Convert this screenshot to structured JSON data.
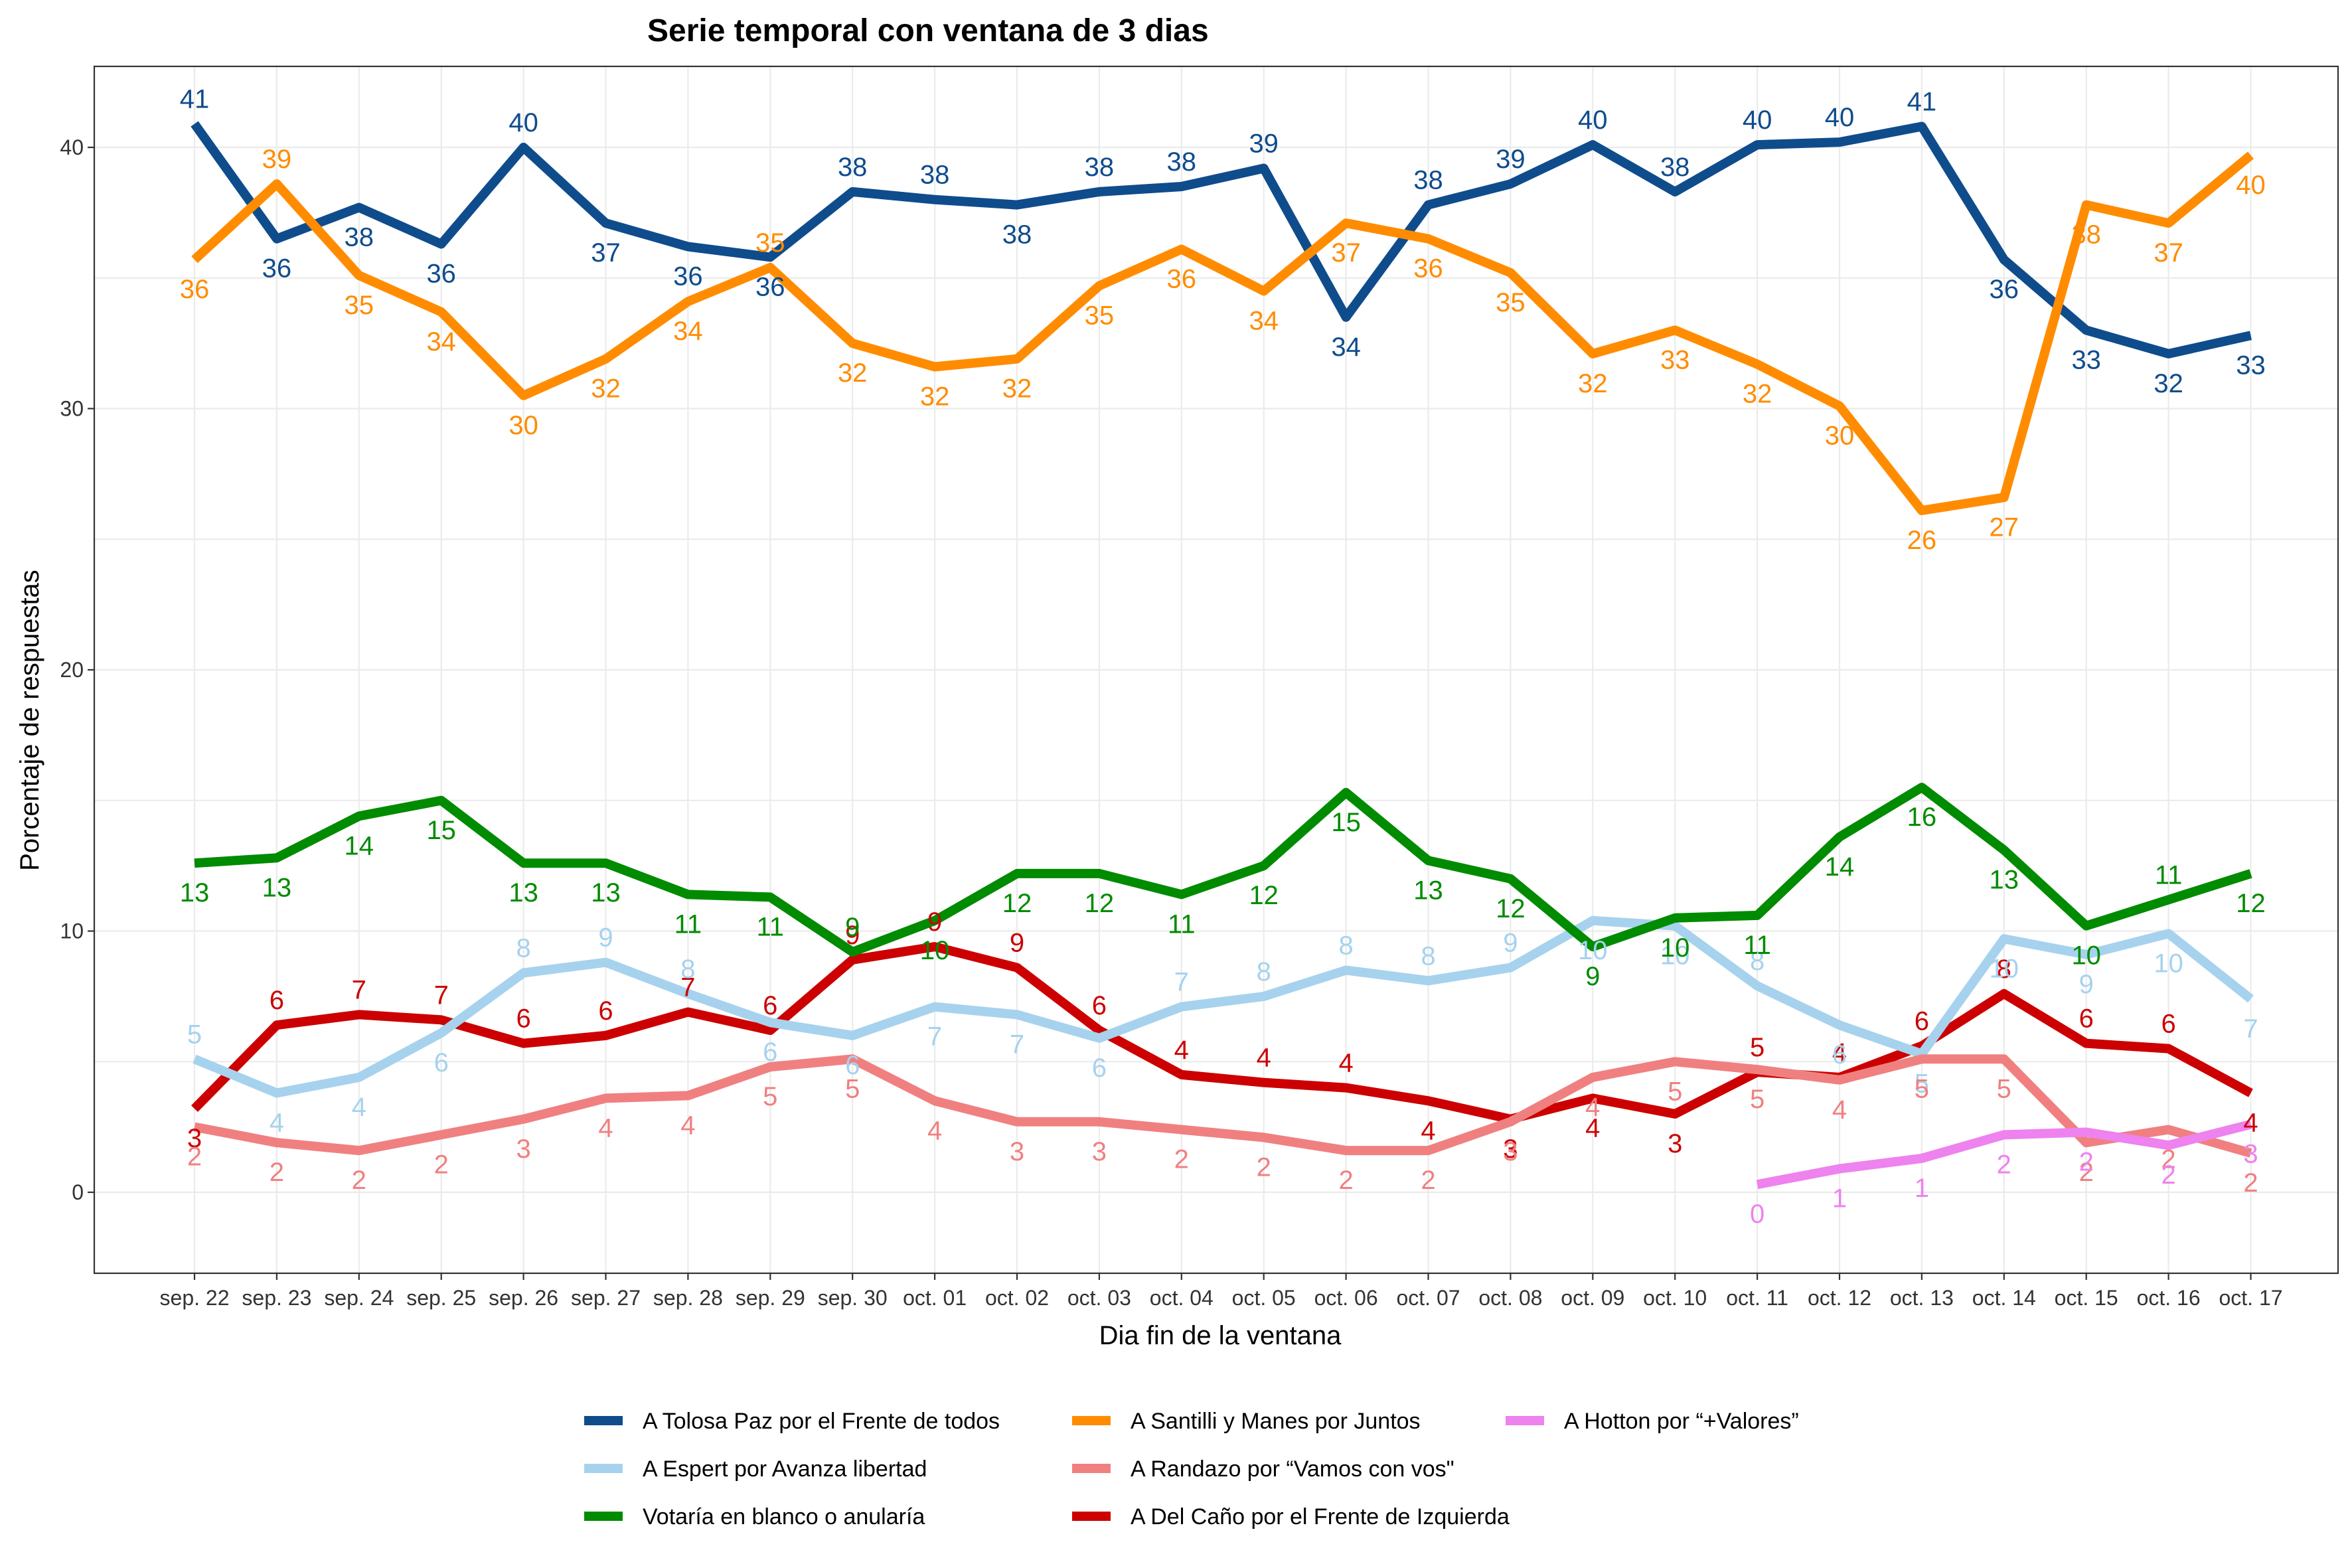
{
  "chart_data": {
    "type": "line",
    "title": "Serie temporal con ventana de 3 dias",
    "xlabel": "Dia fin de la ventana",
    "ylabel": "Porcentaje de respuestas",
    "ylim": [
      -3.1,
      43.1
    ],
    "yticks": [
      0,
      10,
      20,
      30,
      40
    ],
    "grid": true,
    "legend_position": "bottom",
    "categories": [
      "sep. 22",
      "sep. 23",
      "sep. 24",
      "sep. 25",
      "sep. 26",
      "sep. 27",
      "sep. 28",
      "sep. 29",
      "sep. 30",
      "oct. 01",
      "oct. 02",
      "oct. 03",
      "oct. 04",
      "oct. 05",
      "oct. 06",
      "oct. 07",
      "oct. 08",
      "oct. 09",
      "oct. 10",
      "oct. 11",
      "oct. 12",
      "oct. 13",
      "oct. 14",
      "oct. 15",
      "oct. 16",
      "oct. 17"
    ],
    "series": [
      {
        "name": "A Tolosa Paz por el Frente de todos",
        "color": "#0F4C8C",
        "values": [
          40.9,
          36.5,
          37.7,
          36.3,
          40.0,
          37.1,
          36.2,
          35.8,
          38.3,
          38.0,
          37.8,
          38.3,
          38.5,
          39.2,
          33.5,
          37.8,
          38.6,
          40.1,
          38.3,
          40.1,
          40.2,
          40.8,
          35.7,
          33.0,
          32.1,
          32.8
        ],
        "labels": [
          41,
          36,
          38,
          36,
          40,
          37,
          36,
          36,
          38,
          38,
          38,
          38,
          38,
          39,
          34,
          38,
          39,
          40,
          38,
          40,
          40,
          41,
          36,
          33,
          32,
          33
        ],
        "label_side": [
          -1,
          1,
          1,
          1,
          -1,
          1,
          1,
          1,
          -1,
          -1,
          1,
          -1,
          -1,
          -1,
          1,
          -1,
          -1,
          -1,
          -1,
          -1,
          -1,
          -1,
          1,
          1,
          1,
          1
        ]
      },
      {
        "name": "A Santilli y Manes por Juntos",
        "color": "#FF8C00",
        "values": [
          35.7,
          38.6,
          35.1,
          33.7,
          30.5,
          31.9,
          34.1,
          35.4,
          32.5,
          31.6,
          31.9,
          34.7,
          36.1,
          34.5,
          37.1,
          36.5,
          35.2,
          32.1,
          33.0,
          31.7,
          30.1,
          26.1,
          26.6,
          37.8,
          37.1,
          39.7
        ],
        "labels": [
          36,
          39,
          35,
          34,
          30,
          32,
          34,
          35,
          32,
          32,
          32,
          35,
          36,
          34,
          37,
          36,
          35,
          32,
          33,
          32,
          30,
          26,
          27,
          38,
          37,
          40
        ],
        "label_side": [
          1,
          -1,
          1,
          1,
          1,
          1,
          1,
          -1,
          1,
          1,
          1,
          1,
          1,
          1,
          1,
          1,
          1,
          1,
          1,
          1,
          1,
          1,
          1,
          1,
          1,
          1
        ]
      },
      {
        "name": "A Del Caño por el Frente de Izquierda",
        "color": "#CC0000",
        "values": [
          3.2,
          6.4,
          6.8,
          6.6,
          5.7,
          6.0,
          6.9,
          6.2,
          8.9,
          9.4,
          8.6,
          6.2,
          4.5,
          4.2,
          4.0,
          3.5,
          2.8,
          3.6,
          3.0,
          4.6,
          4.4,
          5.6,
          7.6,
          5.7,
          5.5,
          3.8
        ],
        "labels": [
          3,
          6,
          7,
          7,
          6,
          6,
          7,
          6,
          9,
          9,
          9,
          6,
          4,
          4,
          4,
          4,
          3,
          4,
          3,
          5,
          4,
          6,
          8,
          6,
          6,
          4
        ],
        "label_side": [
          1,
          -1,
          -1,
          -1,
          -1,
          -1,
          -1,
          -1,
          -1,
          -1,
          -1,
          -1,
          -1,
          -1,
          -1,
          1,
          1,
          1,
          1,
          -1,
          -1,
          -1,
          -1,
          -1,
          -1,
          1
        ]
      },
      {
        "name": "A Espert por Avanza libertad",
        "color": "#A6D2EE",
        "values": [
          5.1,
          3.8,
          4.4,
          6.1,
          8.4,
          8.8,
          7.6,
          6.5,
          6.0,
          7.1,
          6.8,
          5.9,
          7.1,
          7.5,
          8.5,
          8.1,
          8.6,
          10.4,
          10.2,
          7.9,
          6.4,
          5.3,
          9.7,
          9.1,
          9.9,
          7.4
        ],
        "labels": [
          5,
          4,
          4,
          6,
          8,
          9,
          8,
          6,
          6,
          7,
          7,
          6,
          7,
          8,
          8,
          8,
          9,
          10,
          10,
          8,
          6,
          5,
          10,
          9,
          10,
          7
        ],
        "label_side": [
          -1,
          1,
          1,
          1,
          -1,
          -1,
          -1,
          1,
          1,
          1,
          1,
          1,
          -1,
          -1,
          -1,
          -1,
          -1,
          1,
          1,
          -1,
          1,
          1,
          1,
          1,
          1,
          1
        ]
      },
      {
        "name": "A Randazo por “Vamos con vos\"",
        "color": "#F08080",
        "values": [
          2.5,
          1.9,
          1.6,
          2.2,
          2.8,
          3.6,
          3.7,
          4.8,
          5.1,
          3.5,
          2.7,
          2.7,
          2.4,
          2.1,
          1.6,
          1.6,
          2.7,
          4.4,
          5.0,
          4.7,
          4.3,
          5.1,
          5.1,
          1.9,
          2.4,
          1.5
        ],
        "labels": [
          2,
          2,
          2,
          2,
          3,
          4,
          4,
          5,
          5,
          4,
          3,
          3,
          2,
          2,
          2,
          2,
          3,
          4,
          5,
          5,
          4,
          5,
          5,
          2,
          2,
          2
        ],
        "label_side": [
          1,
          1,
          1,
          1,
          1,
          1,
          1,
          1,
          1,
          1,
          1,
          1,
          1,
          1,
          1,
          1,
          1,
          1,
          1,
          1,
          1,
          1,
          1,
          1,
          1,
          1
        ]
      },
      {
        "name": "A Hotton por “+Valores”",
        "color": "#EE82EE",
        "values": [
          null,
          null,
          null,
          null,
          null,
          null,
          null,
          null,
          null,
          null,
          null,
          null,
          null,
          null,
          null,
          null,
          null,
          null,
          null,
          0.3,
          0.9,
          1.3,
          2.2,
          2.3,
          1.8,
          2.6
        ],
        "labels": [
          null,
          null,
          null,
          null,
          null,
          null,
          null,
          null,
          null,
          null,
          null,
          null,
          null,
          null,
          null,
          null,
          null,
          null,
          null,
          0,
          1,
          1,
          2,
          2,
          2,
          3
        ],
        "label_side": [
          1,
          1,
          1,
          1,
          1,
          1,
          1,
          1,
          1,
          1,
          1,
          1,
          1,
          1,
          1,
          1,
          1,
          1,
          1,
          1,
          1,
          1,
          1,
          1,
          1,
          1
        ]
      },
      {
        "name": "Votaría en blanco o anularía",
        "color": "#008B00",
        "values": [
          12.6,
          12.8,
          14.4,
          15.0,
          12.6,
          12.6,
          11.4,
          11.3,
          9.2,
          10.4,
          12.2,
          12.2,
          11.4,
          12.5,
          15.3,
          12.7,
          12.0,
          9.4,
          10.5,
          10.6,
          13.6,
          15.5,
          13.1,
          10.2,
          11.2,
          12.2
        ],
        "labels": [
          13,
          13,
          14,
          15,
          13,
          13,
          11,
          11,
          9,
          10,
          12,
          12,
          11,
          12,
          15,
          13,
          12,
          9,
          10,
          11,
          14,
          16,
          13,
          10,
          11,
          12
        ],
        "label_side": [
          1,
          1,
          1,
          1,
          1,
          1,
          1,
          1,
          -1,
          1,
          1,
          1,
          1,
          1,
          1,
          1,
          1,
          1,
          1,
          1,
          1,
          1,
          1,
          1,
          -1,
          1
        ]
      }
    ],
    "legend_order": [
      0,
      3,
      6,
      1,
      4,
      2,
      5
    ]
  }
}
